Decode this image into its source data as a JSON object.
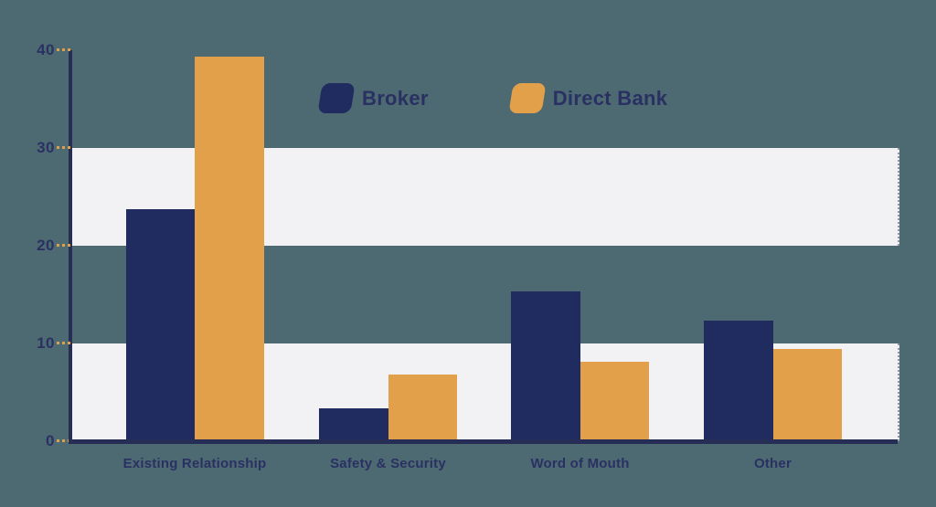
{
  "page": {
    "background_color": "#4d6a73"
  },
  "legend": {
    "items": [
      {
        "label": "Broker",
        "color": "#202b5f",
        "icon": "skewed-square-swatch"
      },
      {
        "label": "Direct Bank",
        "color": "#e2a04b",
        "icon": "skewed-square-swatch"
      }
    ],
    "position": "top-center"
  },
  "chart_data": {
    "type": "bar",
    "title": "",
    "xlabel": "",
    "ylabel": "",
    "categories": [
      "Existing Relationship",
      "Safety & Security",
      "Word of Mouth",
      "Other"
    ],
    "series": [
      {
        "name": "Broker",
        "color": "#202b5f",
        "values": [
          23.7,
          3.4,
          15.3,
          12.3
        ]
      },
      {
        "name": "Direct Bank",
        "color": "#e2a04b",
        "values": [
          39.3,
          6.8,
          8.1,
          9.4
        ]
      }
    ],
    "ylim": [
      0,
      40
    ],
    "yticks": [
      0,
      10,
      20,
      30,
      40
    ],
    "grid": false,
    "highlight_bands": {
      "ranges": [
        [
          20,
          30
        ],
        [
          0,
          10
        ]
      ],
      "color": "#f2f1f4"
    },
    "axis_color": "#262e55",
    "tick_mark_color": "#dfa04e",
    "label_color": "#2a3162",
    "legend_position": "top-center"
  }
}
